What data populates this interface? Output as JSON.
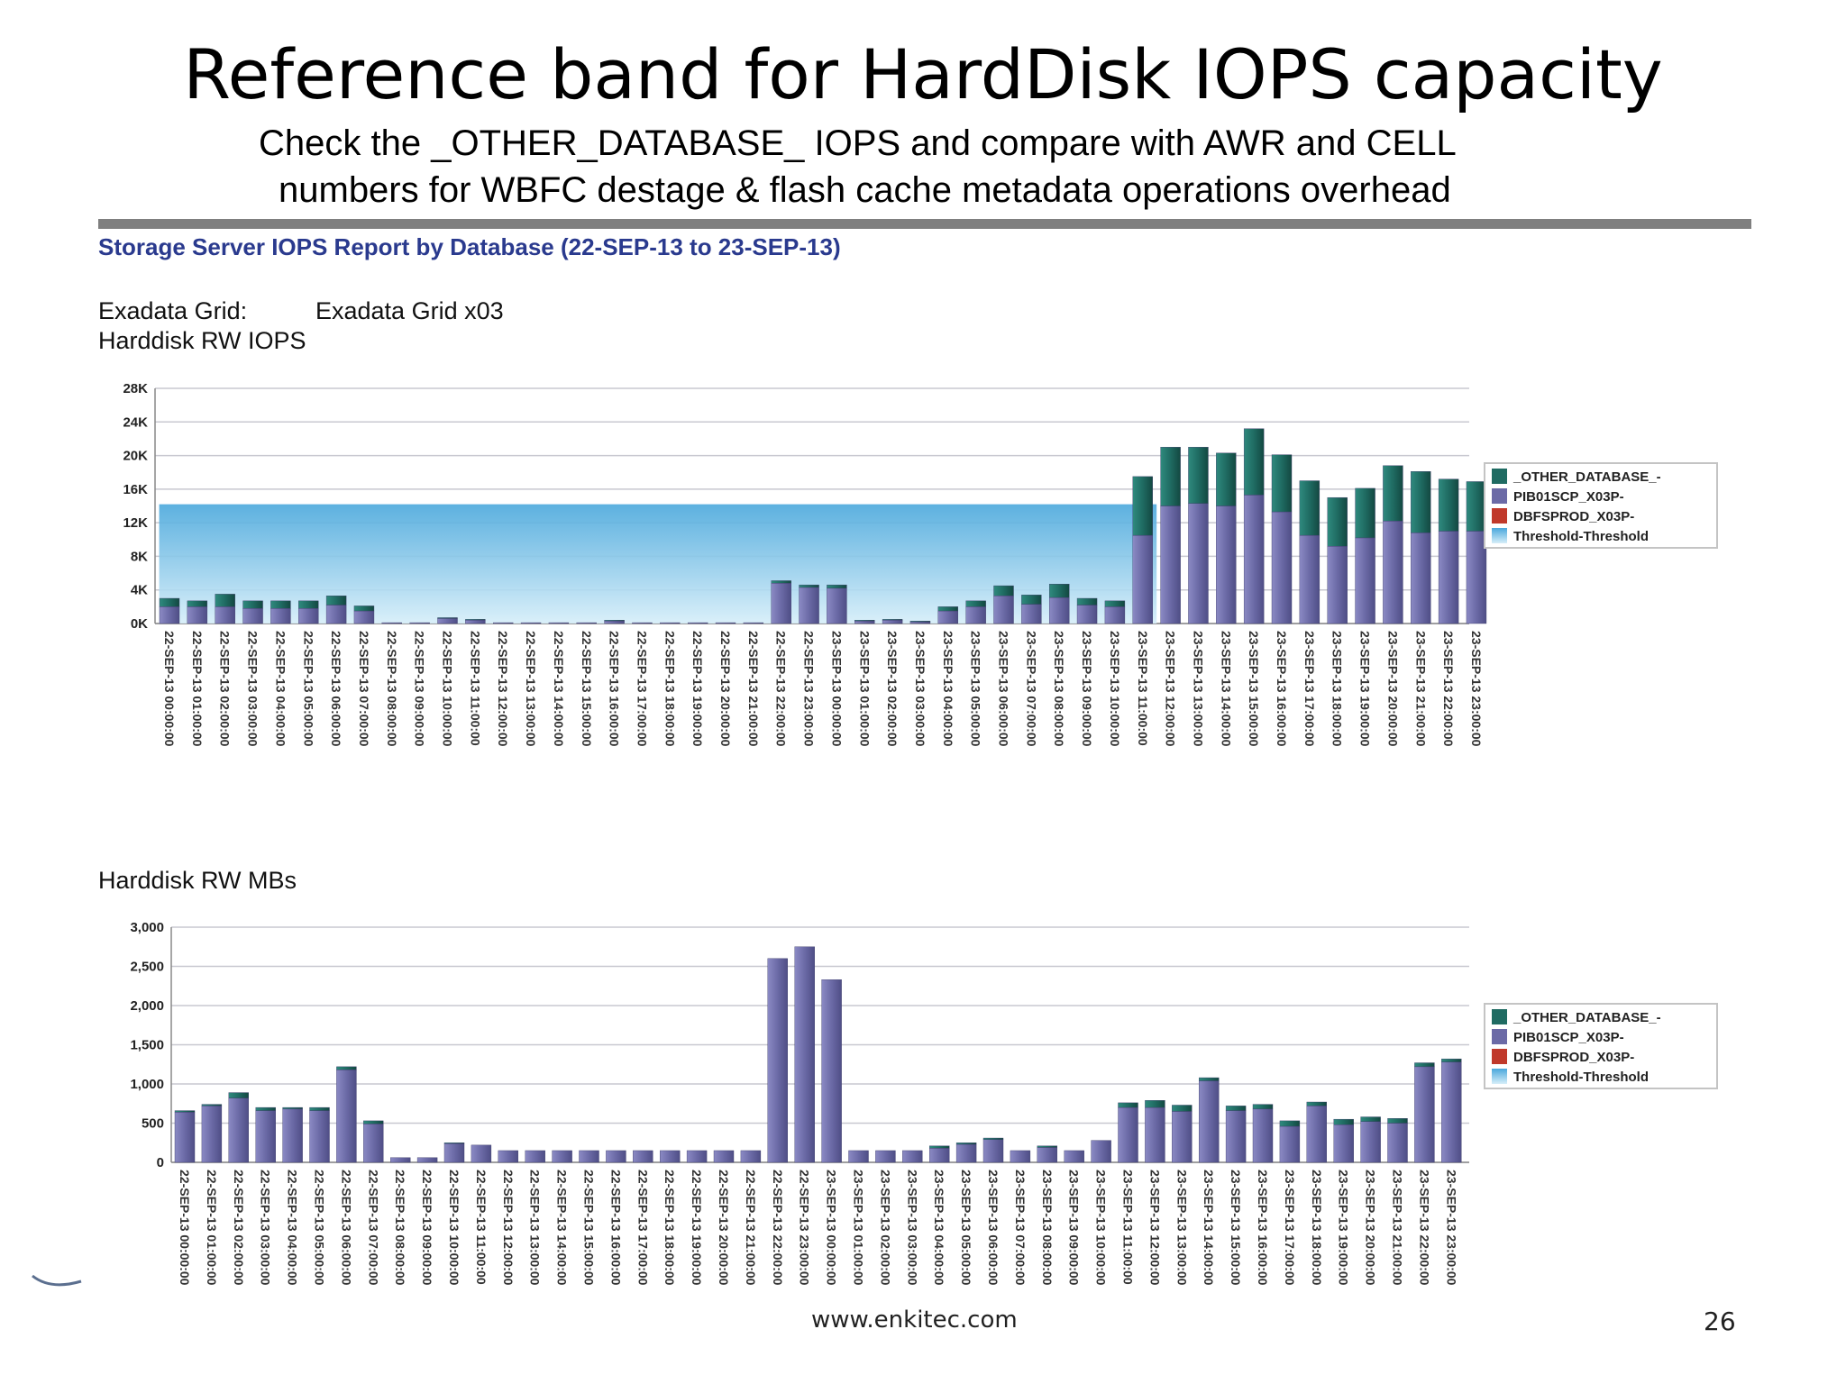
{
  "slide": {
    "title": "Reference band for HardDisk IOPS capacity",
    "subtitle_line1": "Check the _OTHER_DATABASE_ IOPS and compare with AWR and CELL",
    "subtitle_line2": "numbers for WBFC destage & flash cache metadata operations overhead",
    "footer_url": "www.enkitec.com",
    "page_number": "26"
  },
  "report": {
    "title": "Storage Server IOPS Report by Database (22-SEP-13 to 23-SEP-13)",
    "grid_label": "Exadata Grid:",
    "grid_value": "Exadata Grid x03"
  },
  "colors": {
    "other_database": "#1f6b62",
    "pib01scp": "#6b6aa6",
    "dbfsprod": "#c0392b",
    "threshold_top": "#4aa8dc",
    "threshold_bottom": "#d6eef9",
    "grid": "#c8c8d0"
  },
  "chart_data": [
    {
      "type": "bar",
      "stacked": true,
      "title": "Harddisk RW IOPS",
      "ylim": [
        0,
        28000
      ],
      "yticks": [
        0,
        4000,
        8000,
        12000,
        16000,
        20000,
        24000,
        28000
      ],
      "ytick_labels": [
        "0K",
        "4K",
        "8K",
        "12K",
        "16K",
        "20K",
        "24K",
        "28K"
      ],
      "categories": [
        "22-SEP-13 00:00:00",
        "22-SEP-13 01:00:00",
        "22-SEP-13 02:00:00",
        "22-SEP-13 03:00:00",
        "22-SEP-13 04:00:00",
        "22-SEP-13 05:00:00",
        "22-SEP-13 06:00:00",
        "22-SEP-13 07:00:00",
        "22-SEP-13 08:00:00",
        "22-SEP-13 09:00:00",
        "22-SEP-13 10:00:00",
        "22-SEP-13 11:00:00",
        "22-SEP-13 12:00:00",
        "22-SEP-13 13:00:00",
        "22-SEP-13 14:00:00",
        "22-SEP-13 15:00:00",
        "22-SEP-13 16:00:00",
        "22-SEP-13 17:00:00",
        "22-SEP-13 18:00:00",
        "22-SEP-13 19:00:00",
        "22-SEP-13 20:00:00",
        "22-SEP-13 21:00:00",
        "22-SEP-13 22:00:00",
        "22-SEP-13 23:00:00",
        "23-SEP-13 00:00:00",
        "23-SEP-13 01:00:00",
        "23-SEP-13 02:00:00",
        "23-SEP-13 03:00:00",
        "23-SEP-13 04:00:00",
        "23-SEP-13 05:00:00",
        "23-SEP-13 06:00:00",
        "23-SEP-13 07:00:00",
        "23-SEP-13 08:00:00",
        "23-SEP-13 09:00:00",
        "23-SEP-13 10:00:00",
        "23-SEP-13 11:00:00",
        "23-SEP-13 12:00:00",
        "23-SEP-13 13:00:00",
        "23-SEP-13 14:00:00",
        "23-SEP-13 15:00:00",
        "23-SEP-13 16:00:00",
        "23-SEP-13 17:00:00",
        "23-SEP-13 18:00:00",
        "23-SEP-13 19:00:00",
        "23-SEP-13 20:00:00",
        "23-SEP-13 21:00:00",
        "23-SEP-13 22:00:00",
        "23-SEP-13 23:00:00"
      ],
      "series": [
        {
          "name": "PIB01SCP_X03P-",
          "values": [
            2000,
            2000,
            2000,
            1800,
            1800,
            1800,
            2200,
            1500,
            100,
            100,
            600,
            400,
            100,
            100,
            100,
            100,
            300,
            100,
            100,
            100,
            100,
            100,
            4800,
            4300,
            4200,
            300,
            400,
            200,
            1500,
            2000,
            3300,
            2300,
            3100,
            2200,
            2000,
            10500,
            14000,
            14300,
            14000,
            15300,
            13300,
            10500,
            9200,
            10200,
            12200,
            10800,
            11000,
            11000
          ]
        },
        {
          "name": "DBFSPROD_X03P-",
          "values": [
            0,
            0,
            0,
            0,
            0,
            0,
            0,
            0,
            0,
            0,
            0,
            0,
            0,
            0,
            0,
            0,
            0,
            0,
            0,
            0,
            0,
            0,
            0,
            0,
            0,
            0,
            0,
            0,
            0,
            0,
            0,
            0,
            0,
            0,
            0,
            0,
            0,
            0,
            0,
            0,
            0,
            0,
            0,
            0,
            0,
            0,
            0,
            0
          ]
        },
        {
          "name": "_OTHER_DATABASE_-",
          "values": [
            1000,
            700,
            1500,
            900,
            900,
            900,
            1100,
            600,
            0,
            0,
            100,
            100,
            0,
            0,
            0,
            0,
            100,
            0,
            0,
            0,
            0,
            0,
            300,
            300,
            400,
            100,
            100,
            100,
            500,
            700,
            1200,
            1100,
            1600,
            800,
            700,
            7000,
            7000,
            6700,
            6300,
            7900,
            6800,
            6500,
            5800,
            5900,
            6600,
            7300,
            6200,
            5900
          ]
        }
      ],
      "threshold": {
        "name": "Threshold-Threshold",
        "value": 14200
      },
      "legend": [
        "_OTHER_DATABASE_-",
        "PIB01SCP_X03P-",
        "DBFSPROD_X03P-",
        "Threshold-Threshold"
      ],
      "legend_position": "right"
    },
    {
      "type": "bar",
      "stacked": true,
      "title": "Harddisk RW MBs",
      "ylim": [
        0,
        3000
      ],
      "yticks": [
        0,
        500,
        1000,
        1500,
        2000,
        2500,
        3000
      ],
      "ytick_labels": [
        "0",
        "500",
        "1,000",
        "1,500",
        "2,000",
        "2,500",
        "3,000"
      ],
      "categories": [
        "22-SEP-13 00:00:00",
        "22-SEP-13 01:00:00",
        "22-SEP-13 02:00:00",
        "22-SEP-13 03:00:00",
        "22-SEP-13 04:00:00",
        "22-SEP-13 05:00:00",
        "22-SEP-13 06:00:00",
        "22-SEP-13 07:00:00",
        "22-SEP-13 08:00:00",
        "22-SEP-13 09:00:00",
        "22-SEP-13 10:00:00",
        "22-SEP-13 11:00:00",
        "22-SEP-13 12:00:00",
        "22-SEP-13 13:00:00",
        "22-SEP-13 14:00:00",
        "22-SEP-13 15:00:00",
        "22-SEP-13 16:00:00",
        "22-SEP-13 17:00:00",
        "22-SEP-13 18:00:00",
        "22-SEP-13 19:00:00",
        "22-SEP-13 20:00:00",
        "22-SEP-13 21:00:00",
        "22-SEP-13 22:00:00",
        "22-SEP-13 23:00:00",
        "23-SEP-13 00:00:00",
        "23-SEP-13 01:00:00",
        "23-SEP-13 02:00:00",
        "23-SEP-13 03:00:00",
        "23-SEP-13 04:00:00",
        "23-SEP-13 05:00:00",
        "23-SEP-13 06:00:00",
        "23-SEP-13 07:00:00",
        "23-SEP-13 08:00:00",
        "23-SEP-13 09:00:00",
        "23-SEP-13 10:00:00",
        "23-SEP-13 11:00:00",
        "23-SEP-13 12:00:00",
        "23-SEP-13 13:00:00",
        "23-SEP-13 14:00:00",
        "23-SEP-13 15:00:00",
        "23-SEP-13 16:00:00",
        "23-SEP-13 17:00:00",
        "23-SEP-13 18:00:00",
        "23-SEP-13 19:00:00",
        "23-SEP-13 20:00:00",
        "23-SEP-13 21:00:00",
        "23-SEP-13 22:00:00",
        "23-SEP-13 23:00:00"
      ],
      "series": [
        {
          "name": "PIB01SCP_X03P-",
          "values": [
            640,
            720,
            820,
            660,
            680,
            660,
            1180,
            490,
            60,
            60,
            240,
            220,
            150,
            150,
            150,
            150,
            150,
            150,
            150,
            150,
            150,
            150,
            2600,
            2750,
            2330,
            150,
            150,
            150,
            180,
            230,
            290,
            150,
            190,
            150,
            280,
            700,
            700,
            650,
            1040,
            660,
            680,
            460,
            720,
            480,
            520,
            500,
            1220,
            1280
          ]
        },
        {
          "name": "DBFSPROD_X03P-",
          "values": [
            0,
            0,
            0,
            0,
            0,
            0,
            0,
            0,
            0,
            0,
            0,
            0,
            0,
            0,
            0,
            0,
            0,
            0,
            0,
            0,
            0,
            0,
            0,
            0,
            0,
            0,
            0,
            0,
            0,
            0,
            0,
            0,
            0,
            0,
            0,
            0,
            0,
            0,
            0,
            0,
            0,
            0,
            0,
            0,
            0,
            0,
            0,
            0
          ]
        },
        {
          "name": "_OTHER_DATABASE_-",
          "values": [
            20,
            20,
            70,
            40,
            20,
            40,
            40,
            40,
            0,
            0,
            10,
            0,
            0,
            0,
            0,
            0,
            0,
            0,
            0,
            0,
            0,
            0,
            0,
            0,
            0,
            0,
            0,
            0,
            30,
            20,
            20,
            0,
            20,
            0,
            0,
            60,
            90,
            80,
            40,
            60,
            60,
            70,
            50,
            70,
            60,
            60,
            50,
            40
          ]
        }
      ],
      "legend": [
        "_OTHER_DATABASE_-",
        "PIB01SCP_X03P-",
        "DBFSPROD_X03P-",
        "Threshold-Threshold"
      ],
      "legend_position": "right"
    }
  ]
}
